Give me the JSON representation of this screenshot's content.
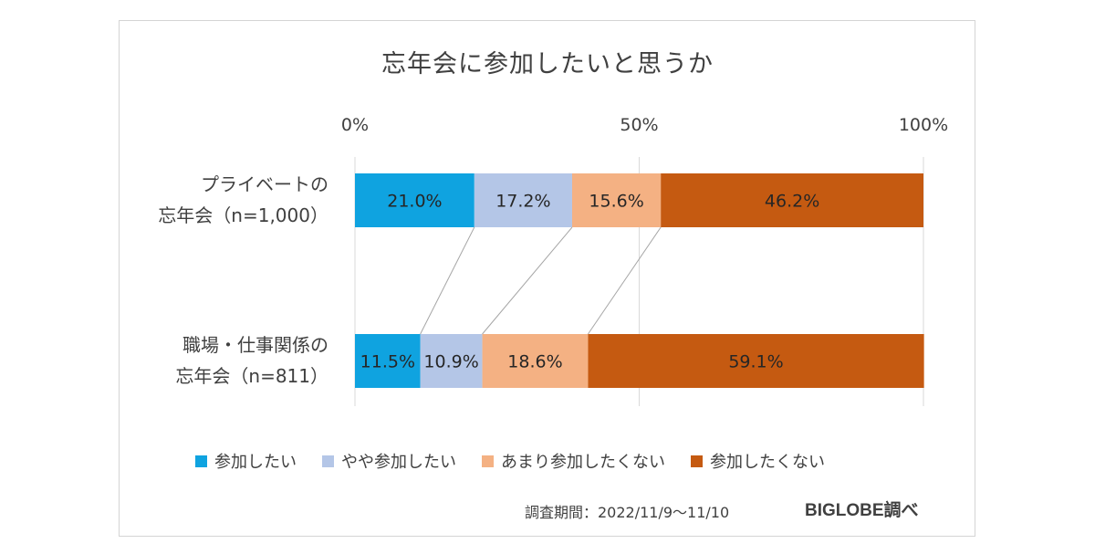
{
  "chart_data": {
    "type": "bar",
    "orientation": "horizontal",
    "stacked": true,
    "percent_stacked": true,
    "title": "忘年会に参加したいと思うか",
    "categories": [
      [
        "プライベートの",
        "忘年会（n=1,000）"
      ],
      [
        "職場・仕事関係の",
        "忘年会（n=811）"
      ]
    ],
    "series": [
      {
        "name": "参加したい",
        "color": "#0FA3E0",
        "values": [
          21.0,
          11.5
        ],
        "labels": [
          "21.0%",
          "11.5%"
        ]
      },
      {
        "name": "やや参加したい",
        "color": "#B4C6E7",
        "values": [
          17.2,
          10.9
        ],
        "labels": [
          "17.2%",
          "10.9%"
        ]
      },
      {
        "name": "あまり参加したくない",
        "color": "#F4B183",
        "values": [
          15.6,
          18.6
        ],
        "labels": [
          "15.6%",
          "18.6%"
        ]
      },
      {
        "name": "参加したくない",
        "color": "#C55A11",
        "values": [
          46.2,
          59.1
        ],
        "labels": [
          "46.2%",
          "59.1%"
        ]
      }
    ],
    "xlim": [
      0,
      100
    ],
    "x_ticks": [
      "0%",
      "50%",
      "100%"
    ],
    "x_tick_values": [
      0,
      50,
      100
    ],
    "grid": true,
    "series_connector_lines": true,
    "legend_position": "bottom"
  },
  "footer": {
    "source": "調査期間：2022/11/9～11/10",
    "brand": "BIGLOBE調べ"
  }
}
